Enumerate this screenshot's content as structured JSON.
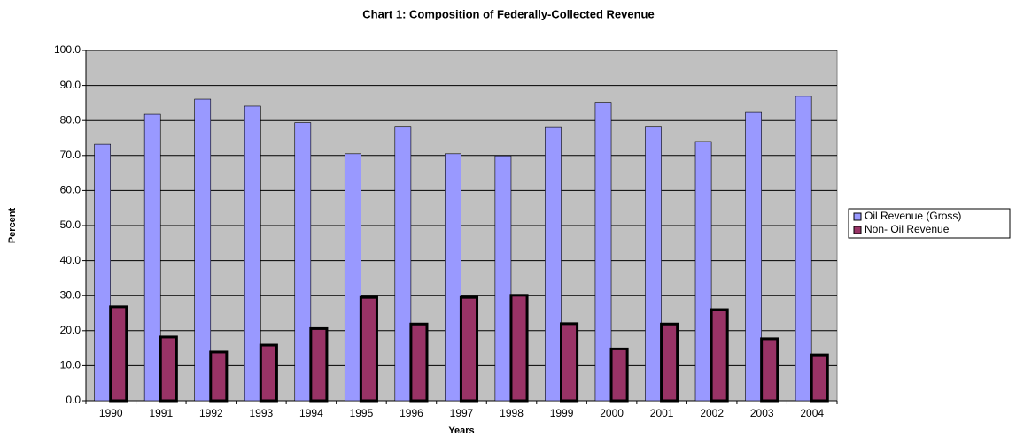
{
  "chart_data": {
    "type": "bar",
    "title": "Chart 1: Composition of Federally-Collected Revenue",
    "x_label": "Years",
    "y_label": "Percent",
    "categories": [
      "1990",
      "1991",
      "1992",
      "1993",
      "1994",
      "1995",
      "1996",
      "1997",
      "1998",
      "1999",
      "2000",
      "2001",
      "2002",
      "2003",
      "2004"
    ],
    "series": [
      {
        "name": "Oil Revenue (Gross)",
        "color": "#9999ff",
        "values": [
          73.2,
          81.8,
          86.1,
          84.1,
          79.4,
          70.5,
          78.1,
          70.5,
          69.9,
          78.0,
          85.2,
          78.1,
          74.0,
          82.3,
          86.9
        ]
      },
      {
        "name": "Non- Oil Revenue",
        "color": "#993366",
        "values": [
          26.8,
          18.2,
          13.9,
          15.9,
          20.6,
          29.5,
          21.9,
          29.5,
          30.1,
          22.0,
          14.8,
          21.9,
          26.0,
          17.7,
          13.1
        ]
      }
    ],
    "ylim": [
      0,
      100
    ],
    "yticks": [
      {
        "value": 0,
        "label": "0.0"
      },
      {
        "value": 10,
        "label": "10.0"
      },
      {
        "value": 20,
        "label": "20.0"
      },
      {
        "value": 30,
        "label": "30.0"
      },
      {
        "value": 40,
        "label": "40.0"
      },
      {
        "value": 50,
        "label": "50.0"
      },
      {
        "value": 60,
        "label": "60.0"
      },
      {
        "value": 70,
        "label": "70.0"
      },
      {
        "value": 80,
        "label": "80.0"
      },
      {
        "value": 90,
        "label": "90.0"
      },
      {
        "value": 100,
        "label": "100.0"
      }
    ],
    "grid": true,
    "legend": "right",
    "plot_background": "#c0c0c0"
  }
}
